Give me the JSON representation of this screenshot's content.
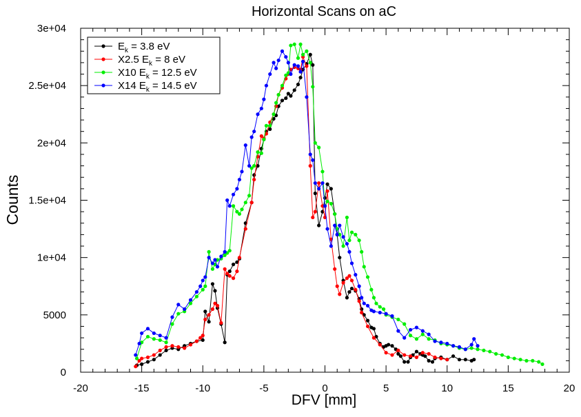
{
  "chart_data": {
    "type": "line",
    "title": "Horizontal Scans on aC",
    "xlabel": "DFV [mm]",
    "ylabel": "Counts",
    "xlim": [
      -20,
      20
    ],
    "ylim": [
      0,
      30000
    ],
    "xticks": [
      "-20",
      "-15",
      "-10",
      "-5",
      "0",
      "5",
      "10",
      "15",
      "20"
    ],
    "yticks": [
      "0",
      "5000",
      "1e+04",
      "1.5e+04",
      "2e+04",
      "2.5e+04",
      "3e+04"
    ],
    "legend_position": "top-left",
    "grid": false,
    "series": [
      {
        "name": "E_k = 3.8 eV",
        "legend_main": "E",
        "legend_sub": "k",
        "legend_rest": " = 3.8 eV",
        "color": "#000000",
        "x": [
          -15.4,
          -15.0,
          -14.5,
          -14.0,
          -13.5,
          -13.0,
          -12.5,
          -12.0,
          -11.5,
          -11.0,
          -10.5,
          -10.0,
          -9.8,
          -9.5,
          -9.2,
          -9.0,
          -8.8,
          -8.5,
          -8.2,
          -8.0,
          -7.8,
          -7.5,
          -7.2,
          -7.0,
          -6.5,
          -6.0,
          -5.8,
          -5.5,
          -5.2,
          -5.0,
          -4.8,
          -4.5,
          -4.2,
          -4.0,
          -3.8,
          -3.5,
          -3.2,
          -3.0,
          -2.8,
          -2.5,
          -2.2,
          -2.0,
          -1.8,
          -1.5,
          -1.2,
          -1.0,
          -0.8,
          -0.5,
          -0.2,
          0.0,
          0.2,
          0.5,
          0.8,
          1.0,
          1.2,
          1.5,
          1.8,
          2.0,
          2.2,
          2.5,
          2.8,
          3.0,
          3.2,
          3.5,
          3.8,
          4.0,
          4.2,
          4.5,
          4.8,
          5.0,
          5.2,
          5.5,
          5.8,
          6.0,
          6.2,
          6.5,
          6.8,
          7.0,
          7.2,
          7.5,
          7.8,
          8.0,
          8.2,
          8.5,
          8.8,
          9.0,
          9.5,
          10.0,
          10.5,
          11.0,
          11.5,
          12.0,
          12.2
        ],
        "y": [
          600,
          700,
          900,
          1100,
          1500,
          1900,
          2100,
          2000,
          2300,
          2500,
          2700,
          2800,
          5300,
          4400,
          7700,
          7100,
          5600,
          4200,
          2600,
          8500,
          8800,
          9400,
          9600,
          9900,
          13000,
          14800,
          17200,
          18000,
          19500,
          20300,
          21000,
          21200,
          22100,
          22400,
          23200,
          23700,
          23900,
          24300,
          24100,
          24600,
          25100,
          25700,
          26400,
          26900,
          27700,
          26800,
          15600,
          12800,
          14000,
          15200,
          16400,
          16000,
          13800,
          12000,
          10000,
          8000,
          6500,
          7000,
          7300,
          7100,
          6400,
          5500,
          5000,
          4500,
          3900,
          3800,
          3100,
          2500,
          2200,
          2300,
          2400,
          2300,
          2000,
          1600,
          1400,
          900,
          900,
          1300,
          1500,
          1800,
          1600,
          1500,
          1400,
          1000,
          900,
          1200,
          1300,
          1100,
          1400,
          1100,
          1100,
          1000,
          1100
        ]
      },
      {
        "name": "X2.5 E_k = 8 eV",
        "legend_main": "X2.5 E",
        "legend_sub": "k",
        "legend_rest": " = 8 eV",
        "color": "#ff0000",
        "x": [
          -15.5,
          -15.2,
          -15.0,
          -14.5,
          -14.0,
          -13.5,
          -13.0,
          -12.5,
          -12.0,
          -11.5,
          -11.0,
          -10.5,
          -10.2,
          -10.0,
          -9.8,
          -9.5,
          -9.2,
          -9.0,
          -8.8,
          -8.5,
          -8.2,
          -8.0,
          -7.8,
          -7.5,
          -7.2,
          -7.0,
          -6.5,
          -6.0,
          -5.8,
          -5.5,
          -5.2,
          -5.0,
          -4.8,
          -4.5,
          -4.2,
          -4.0,
          -3.8,
          -3.5,
          -3.2,
          -3.0,
          -2.8,
          -2.5,
          -2.2,
          -2.0,
          -1.8,
          -1.5,
          -1.2,
          -1.0,
          -0.8,
          -0.5,
          -0.2,
          0.0,
          0.2,
          0.5,
          0.8,
          1.0,
          1.2,
          1.5,
          1.8,
          2.0,
          2.2,
          2.5,
          2.8,
          3.0,
          3.5,
          4.0,
          4.5,
          5.0,
          5.5,
          6.0,
          6.5,
          7.0,
          7.5,
          8.0,
          8.5,
          9.0,
          9.5,
          10.0
        ],
        "y": [
          500,
          1000,
          1200,
          1300,
          1500,
          1900,
          2200,
          2300,
          2200,
          2100,
          2400,
          2700,
          3000,
          3200,
          4600,
          5000,
          5500,
          6000,
          5800,
          4300,
          9000,
          8600,
          8400,
          8200,
          8800,
          10000,
          12500,
          14800,
          16800,
          18800,
          20600,
          20400,
          20800,
          21800,
          22500,
          23200,
          24200,
          24800,
          25600,
          26000,
          26400,
          26600,
          26500,
          26400,
          27500,
          26700,
          18000,
          13500,
          14000,
          16500,
          14500,
          13500,
          15800,
          11600,
          9000,
          7500,
          6800,
          7800,
          8200,
          8400,
          8000,
          7200,
          6200,
          5200,
          4000,
          3000,
          2400,
          1700,
          1500,
          1900,
          1500,
          1400,
          1300,
          1700,
          1600,
          1300,
          1200,
          1100
        ]
      },
      {
        "name": "X10 E_k = 12.5 eV",
        "legend_main": "X10 E",
        "legend_sub": "k",
        "legend_rest": " = 12.5 eV",
        "color": "#00ee00",
        "x": [
          -15.4,
          -15.0,
          -14.5,
          -14.0,
          -13.5,
          -13.0,
          -12.5,
          -12.0,
          -11.5,
          -11.0,
          -10.5,
          -10.0,
          -9.8,
          -9.5,
          -9.2,
          -9.0,
          -8.8,
          -8.5,
          -8.2,
          -8.0,
          -7.8,
          -7.5,
          -7.2,
          -7.0,
          -6.8,
          -6.5,
          -6.2,
          -6.0,
          -5.8,
          -5.5,
          -5.2,
          -5.0,
          -4.8,
          -4.5,
          -4.2,
          -4.0,
          -3.8,
          -3.5,
          -3.2,
          -3.0,
          -2.8,
          -2.5,
          -2.2,
          -2.0,
          -1.8,
          -1.5,
          -1.2,
          -1.0,
          -0.8,
          -0.5,
          -0.2,
          0.0,
          0.2,
          0.5,
          0.8,
          1.0,
          1.2,
          1.5,
          1.8,
          2.0,
          2.2,
          2.5,
          2.8,
          3.0,
          3.2,
          3.5,
          3.8,
          4.0,
          4.2,
          4.5,
          4.8,
          5.0,
          5.5,
          6.0,
          6.5,
          7.0,
          7.5,
          8.0,
          8.5,
          9.0,
          9.5,
          10.0,
          10.5,
          11.0,
          11.5,
          12.0,
          12.5,
          13.0,
          13.5,
          14.0,
          14.5,
          15.0,
          15.5,
          16.0,
          16.5,
          17.0,
          17.5,
          17.8
        ],
        "y": [
          1200,
          2600,
          3100,
          2900,
          2800,
          2600,
          4200,
          5100,
          5300,
          6000,
          6600,
          7200,
          7500,
          10500,
          9000,
          9400,
          9800,
          9900,
          10200,
          10400,
          10600,
          14500,
          14000,
          13800,
          14200,
          14800,
          15400,
          17800,
          18000,
          19200,
          19100,
          20300,
          21500,
          21500,
          22500,
          23500,
          24200,
          25000,
          25900,
          26100,
          28500,
          28600,
          27400,
          28600,
          27700,
          28000,
          27000,
          24900,
          20000,
          19600,
          17500,
          14500,
          14900,
          14700,
          13800,
          12500,
          12000,
          11000,
          13500,
          11500,
          12200,
          12000,
          11500,
          10500,
          9200,
          8300,
          7200,
          6500,
          6000,
          5700,
          5500,
          5000,
          4800,
          4600,
          4200,
          3200,
          2900,
          3300,
          2900,
          2800,
          2500,
          2400,
          2300,
          2100,
          2000,
          2100,
          2000,
          1900,
          1800,
          1600,
          1500,
          1300,
          1200,
          1100,
          1000,
          1000,
          900,
          700
        ]
      },
      {
        "name": "X14 E_k = 14.5 eV",
        "legend_main": "X14 E",
        "legend_sub": "k",
        "legend_rest": " = 14.5 eV",
        "color": "#0000ff",
        "x": [
          -15.5,
          -15.2,
          -15.0,
          -14.5,
          -14.0,
          -13.5,
          -13.0,
          -12.5,
          -12.0,
          -11.5,
          -11.0,
          -10.5,
          -10.2,
          -10.0,
          -9.8,
          -9.5,
          -9.2,
          -9.0,
          -8.8,
          -8.5,
          -8.2,
          -8.0,
          -7.8,
          -7.5,
          -7.2,
          -7.0,
          -6.8,
          -6.5,
          -6.2,
          -6.0,
          -5.8,
          -5.5,
          -5.2,
          -5.0,
          -4.8,
          -4.5,
          -4.2,
          -4.0,
          -3.8,
          -3.5,
          -3.2,
          -3.0,
          -2.8,
          -2.5,
          -2.2,
          -2.0,
          -1.8,
          -1.5,
          -1.2,
          -1.0,
          -0.8,
          -0.5,
          -0.2,
          0.0,
          0.2,
          0.5,
          0.8,
          1.0,
          1.2,
          1.5,
          1.8,
          2.0,
          2.2,
          2.5,
          2.8,
          3.0,
          3.2,
          3.5,
          3.8,
          4.0,
          4.5,
          5.0,
          5.5,
          6.0,
          6.5,
          7.0,
          7.5,
          8.0,
          8.5,
          9.0,
          9.5,
          10.0,
          10.5,
          11.0,
          11.5,
          12.0,
          12.2,
          12.5
        ],
        "y": [
          1500,
          2500,
          3400,
          3800,
          3400,
          3200,
          3000,
          4800,
          5900,
          5500,
          6300,
          7000,
          7500,
          8000,
          8300,
          10000,
          9500,
          9800,
          9200,
          10100,
          10500,
          15000,
          14500,
          15500,
          16000,
          16800,
          17500,
          19800,
          18000,
          20500,
          21000,
          22500,
          23000,
          23800,
          25000,
          26000,
          27000,
          26500,
          27200,
          28000,
          27500,
          27000,
          26000,
          26800,
          26700,
          26200,
          27100,
          24000,
          19000,
          18500,
          16500,
          16000,
          16500,
          14500,
          12500,
          11000,
          12800,
          12000,
          12800,
          11800,
          11200,
          10500,
          9500,
          8500,
          7500,
          6500,
          6000,
          5800,
          5400,
          5300,
          5200,
          5100,
          4900,
          3600,
          3000,
          3700,
          3900,
          3600,
          3300,
          2700,
          2600,
          2500,
          2300,
          2200,
          2000,
          2400,
          2900,
          2300
        ]
      }
    ]
  }
}
